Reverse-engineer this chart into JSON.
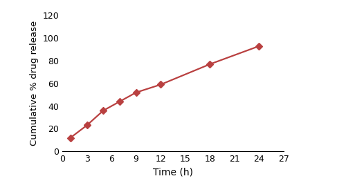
{
  "x": [
    1,
    3,
    5,
    7,
    9,
    12,
    18,
    24
  ],
  "y": [
    12,
    23,
    36,
    44,
    52,
    59,
    77,
    93
  ],
  "line_color": "#b94040",
  "marker": "D",
  "marker_size": 5,
  "linewidth": 1.6,
  "xlabel": "Time (h)",
  "ylabel": "Cumulative % drug release",
  "xlim": [
    0,
    27
  ],
  "ylim": [
    0,
    120
  ],
  "xticks": [
    0,
    3,
    6,
    9,
    12,
    15,
    18,
    21,
    24,
    27
  ],
  "yticks": [
    0,
    20,
    40,
    60,
    80,
    100,
    120
  ],
  "xlabel_fontsize": 10,
  "ylabel_fontsize": 9.5,
  "tick_fontsize": 9,
  "background_color": "#ffffff"
}
